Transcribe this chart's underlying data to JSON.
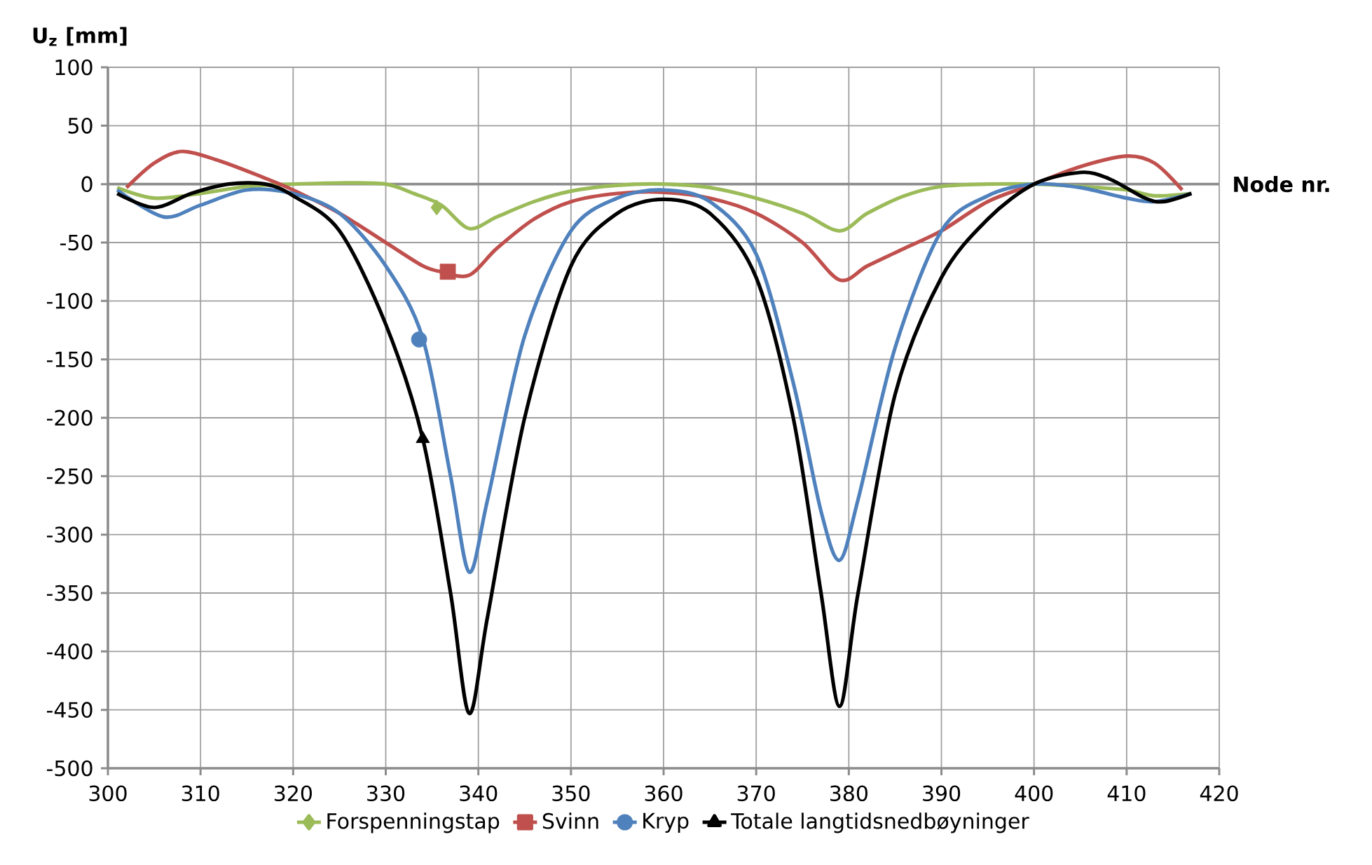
{
  "chart_data": {
    "type": "line",
    "xlabel": "Node nr.",
    "ylabel": "U$_{z}$ [mm]",
    "xlim": [
      300,
      420
    ],
    "xticks": [
      300,
      310,
      320,
      330,
      340,
      350,
      360,
      370,
      380,
      390,
      400,
      410,
      420
    ],
    "ylim": [
      -500,
      100
    ],
    "yticks": [
      100,
      50,
      0,
      -50,
      -100,
      -150,
      -200,
      -250,
      -300,
      -350,
      -400,
      -450,
      -500
    ],
    "grid": true,
    "legend": "bottom",
    "series": [
      {
        "name": "Forspenningstap",
        "color": "#9bbb59",
        "x": [
          301,
          305,
          310,
          315,
          320,
          325,
          330,
          333,
          336,
          339,
          342,
          346,
          350,
          355,
          360,
          365,
          370,
          375,
          379,
          382,
          386,
          390,
          395,
          400,
          405,
          410,
          413,
          417
        ],
        "values": [
          -3,
          -12,
          -8,
          -2,
          0,
          1,
          0,
          -8,
          -18,
          -38,
          -28,
          -15,
          -6,
          -1,
          0,
          -3,
          -12,
          -25,
          -40,
          -25,
          -10,
          -2,
          0,
          0,
          -2,
          -5,
          -10,
          -8
        ]
      },
      {
        "name": "Svinn",
        "color": "#c0504d",
        "x": [
          302,
          305,
          308,
          312,
          317,
          320,
          325,
          330,
          334,
          336,
          339,
          342,
          346,
          350,
          355,
          360,
          365,
          370,
          375,
          379,
          382,
          386,
          390,
          395,
          400,
          405,
          410,
          413,
          416
        ],
        "values": [
          -3,
          18,
          28,
          20,
          5,
          -5,
          -25,
          -50,
          -70,
          -75,
          -78,
          -55,
          -30,
          -15,
          -8,
          -7,
          -12,
          -25,
          -50,
          -82,
          -70,
          -55,
          -40,
          -15,
          0,
          15,
          24,
          18,
          -5
        ]
      },
      {
        "name": "Kryp",
        "color": "#4f81bd",
        "x": [
          301,
          306,
          310,
          315,
          320,
          325,
          330,
          334,
          337,
          339,
          341,
          345,
          350,
          355,
          360,
          365,
          370,
          374,
          377,
          379,
          381,
          385,
          390,
          395,
          400,
          405,
          410,
          413,
          417
        ],
        "values": [
          -5,
          -28,
          -18,
          -5,
          -8,
          -25,
          -70,
          -132,
          -250,
          -332,
          -270,
          -130,
          -40,
          -12,
          -5,
          -15,
          -60,
          -170,
          -280,
          -322,
          -270,
          -140,
          -40,
          -10,
          0,
          -3,
          -12,
          -15,
          -8
        ]
      },
      {
        "name": "Totale langtidsnedbøyninger",
        "color": "#000000",
        "x": [
          301,
          305,
          309,
          313,
          317,
          320,
          325,
          330,
          334,
          337,
          339,
          341,
          345,
          350,
          355,
          360,
          365,
          370,
          374,
          377,
          379,
          381,
          385,
          390,
          395,
          400,
          405,
          408,
          412,
          414,
          417
        ],
        "values": [
          -8,
          -20,
          -8,
          0,
          0,
          -10,
          -40,
          -120,
          -218,
          -350,
          -453,
          -370,
          -200,
          -70,
          -25,
          -13,
          -25,
          -80,
          -200,
          -350,
          -447,
          -350,
          -180,
          -80,
          -30,
          0,
          10,
          5,
          -12,
          -15,
          -8
        ]
      },
      {
        "type": "scatter",
        "color": "#9bbb59",
        "marker": "diamond",
        "x": [
          335.5
        ],
        "values": [
          -20
        ]
      },
      {
        "type": "scatter",
        "color": "#c0504d",
        "marker": "square",
        "x": [
          336.7
        ],
        "values": [
          -75
        ]
      },
      {
        "type": "scatter",
        "color": "#4f81bd",
        "marker": "circle",
        "x": [
          333.6
        ],
        "values": [
          -133
        ]
      },
      {
        "type": "scatter",
        "color": "#000000",
        "marker": "triangle",
        "x": [
          334
        ],
        "values": [
          -218
        ]
      }
    ]
  }
}
